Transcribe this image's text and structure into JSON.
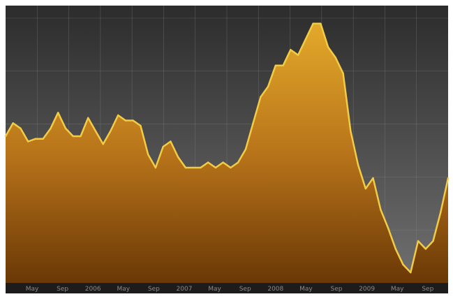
{
  "chart_data": {
    "type": "area",
    "title": "",
    "xlabel": "",
    "ylabel": "",
    "grid": true,
    "legend": "none",
    "x_tick_labels": [
      "May",
      "Sep",
      "2006",
      "May",
      "Sep",
      "2007",
      "May",
      "Sep",
      "2008",
      "May",
      "Sep",
      "2009",
      "May",
      "Sep"
    ],
    "ylim": [
      0,
      100
    ],
    "series": [
      {
        "values": [
          56,
          61,
          59,
          54,
          55,
          55,
          59,
          65,
          59,
          56,
          56,
          63,
          58,
          53,
          58,
          64,
          62,
          62,
          60,
          49,
          44,
          52,
          54,
          48,
          44,
          44,
          44,
          46,
          44,
          46,
          44,
          46,
          51,
          61,
          71,
          75,
          83,
          83,
          89,
          87,
          93,
          99,
          99,
          90,
          86,
          80,
          58,
          45,
          36,
          40,
          28,
          21,
          13,
          7,
          4,
          16,
          13,
          16,
          27,
          40
        ]
      }
    ],
    "colors": {
      "line": "#f2cc45",
      "fill_top": "#e3a92a",
      "fill_mid": "#b8741a",
      "fill_bottom": "#6a3806",
      "bg_top": "#2c2c2c",
      "bg_bottom": "#707070",
      "grid": "#8c8c8c",
      "tick_text": "#8a8a8a"
    }
  }
}
